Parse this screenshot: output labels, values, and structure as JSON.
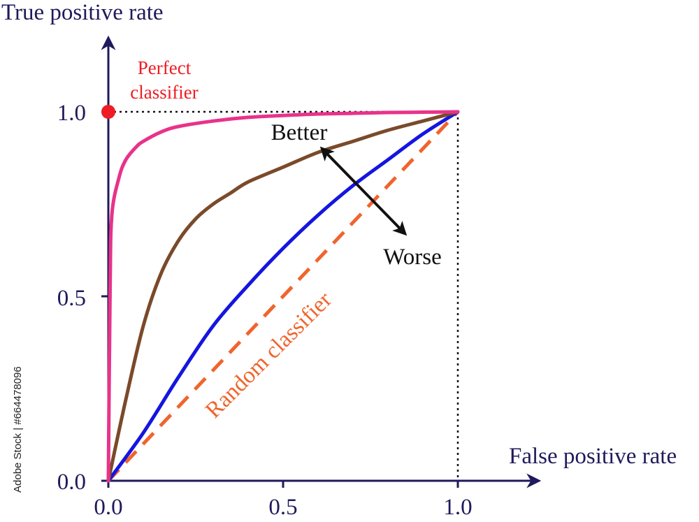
{
  "chart_data": {
    "type": "line",
    "xlabel": "False positive rate",
    "ylabel": "True positive rate",
    "xlim": [
      0,
      1
    ],
    "ylim": [
      0,
      1
    ],
    "x_ticks": [
      "0.0",
      "0.5",
      "1.0"
    ],
    "y_ticks": [
      "0.0",
      "0.5",
      "1.0"
    ],
    "grid": false,
    "series": [
      {
        "color": "#e8338a",
        "x": [
          0,
          0.005,
          0.01,
          0.03,
          0.05,
          0.08,
          0.1,
          0.15,
          0.2,
          0.3,
          0.4,
          0.5,
          0.6,
          0.7,
          0.8,
          0.9,
          1.0
        ],
        "y": [
          0,
          0.52,
          0.72,
          0.82,
          0.87,
          0.905,
          0.92,
          0.945,
          0.96,
          0.975,
          0.985,
          0.99,
          0.994,
          0.996,
          0.998,
          0.999,
          1.0
        ]
      },
      {
        "color": "#7a4a2a",
        "x": [
          0,
          0.05,
          0.1,
          0.15,
          0.2,
          0.25,
          0.3,
          0.35,
          0.4,
          0.5,
          0.6,
          0.7,
          0.8,
          0.9,
          1.0
        ],
        "y": [
          0,
          0.22,
          0.42,
          0.56,
          0.65,
          0.71,
          0.75,
          0.78,
          0.81,
          0.85,
          0.89,
          0.92,
          0.95,
          0.975,
          1.0
        ]
      },
      {
        "color": "#1515e0",
        "x": [
          0,
          0.1,
          0.2,
          0.3,
          0.4,
          0.5,
          0.6,
          0.7,
          0.8,
          0.9,
          1.0
        ],
        "y": [
          0,
          0.13,
          0.28,
          0.42,
          0.53,
          0.63,
          0.72,
          0.8,
          0.87,
          0.94,
          1.0
        ]
      },
      {
        "color": "#f0642d",
        "dashed": true,
        "x": [
          0,
          1
        ],
        "y": [
          0,
          1
        ]
      }
    ],
    "points": [
      {
        "x": 0,
        "y": 1,
        "color": "#ee1c24"
      }
    ],
    "annotations": {
      "perfect_line1": "Perfect",
      "perfect_line2": "classifier",
      "better": "Better",
      "worse": "Worse",
      "random": "Random classifier"
    }
  },
  "watermark": {
    "side_text": "Adobe Stock | #664478096"
  },
  "colors": {
    "axis": "#1f1a5c",
    "arrow": "#111111"
  }
}
